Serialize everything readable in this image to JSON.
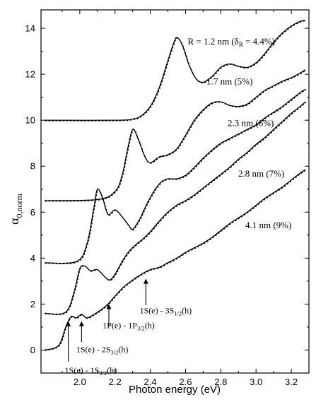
{
  "chart_data": {
    "type": "line",
    "xlabel": "Photon energy (eV)",
    "ylabel": "α",
    "ylabel_sub": "0,norm",
    "xlim": [
      1.78,
      3.3
    ],
    "ylim": [
      -1.0,
      14.8
    ],
    "xticks": [
      2.0,
      2.2,
      2.4,
      2.6,
      2.8,
      3.0,
      3.2
    ],
    "xtick_labels": [
      "2.0",
      "2.2",
      "2.4",
      "2.6",
      "2.8",
      "3.0",
      "3.2"
    ],
    "yticks": [
      0,
      2,
      4,
      6,
      8,
      10,
      12,
      14
    ],
    "ytick_labels": [
      "0",
      "2",
      "4",
      "6",
      "8",
      "10",
      "12",
      "14"
    ],
    "grid": false,
    "series": [
      {
        "label_main": "R = 1.2 nm (δ",
        "label_sub": "R",
        "label_tail": " = 4.4%)",
        "label_at": [
          2.86,
          13.3
        ],
        "x": [
          1.8,
          2.2,
          2.3,
          2.35,
          2.4,
          2.45,
          2.5,
          2.53,
          2.55,
          2.58,
          2.62,
          2.66,
          2.7,
          2.75,
          2.8,
          2.85,
          2.9,
          2.95,
          3.0,
          3.05,
          3.1,
          3.15,
          3.2,
          3.25,
          3.28
        ],
        "y": [
          10.0,
          10.0,
          10.05,
          10.2,
          10.6,
          11.4,
          12.6,
          13.3,
          13.6,
          13.3,
          12.4,
          11.8,
          11.65,
          11.9,
          12.3,
          12.45,
          12.35,
          12.3,
          12.5,
          12.9,
          13.4,
          13.8,
          14.1,
          14.3,
          14.35
        ]
      },
      {
        "label_main": "1.7 nm (5%)",
        "label_at": [
          2.85,
          11.55
        ],
        "x": [
          1.8,
          2.1,
          2.2,
          2.24,
          2.27,
          2.3,
          2.33,
          2.37,
          2.4,
          2.45,
          2.5,
          2.55,
          2.6,
          2.65,
          2.7,
          2.75,
          2.8,
          2.85,
          2.9,
          2.95,
          3.0,
          3.05,
          3.1,
          3.15,
          3.2,
          3.25,
          3.28
        ],
        "y": [
          6.5,
          6.55,
          6.9,
          7.6,
          8.7,
          9.6,
          9.2,
          8.4,
          8.15,
          8.4,
          8.5,
          8.75,
          9.35,
          10.0,
          10.45,
          10.75,
          10.8,
          10.65,
          10.6,
          10.7,
          11.0,
          11.3,
          11.5,
          11.7,
          11.85,
          12.05,
          12.2
        ]
      },
      {
        "label_main": "2.3 nm (6%)",
        "label_at": [
          2.97,
          9.75
        ],
        "x": [
          1.8,
          1.98,
          2.04,
          2.08,
          2.1,
          2.13,
          2.16,
          2.2,
          2.24,
          2.28,
          2.3,
          2.34,
          2.38,
          2.42,
          2.46,
          2.5,
          2.55,
          2.6,
          2.65,
          2.7,
          2.75,
          2.8,
          2.85,
          2.9,
          2.95,
          3.0,
          3.05,
          3.1,
          3.15,
          3.2,
          3.25,
          3.28
        ],
        "y": [
          3.8,
          3.85,
          4.6,
          6.2,
          7.0,
          6.6,
          5.9,
          6.1,
          5.8,
          5.4,
          5.25,
          5.7,
          6.35,
          6.9,
          7.3,
          7.45,
          7.45,
          7.6,
          7.95,
          8.35,
          8.7,
          9.0,
          9.2,
          9.4,
          9.6,
          9.8,
          10.1,
          10.35,
          10.6,
          10.9,
          11.2,
          11.35
        ]
      },
      {
        "label_main": "2.8 nm (7%)",
        "label_at": [
          3.03,
          7.55
        ],
        "x": [
          1.8,
          1.92,
          1.97,
          2.0,
          2.03,
          2.06,
          2.1,
          2.14,
          2.17,
          2.2,
          2.24,
          2.28,
          2.32,
          2.36,
          2.4,
          2.45,
          2.5,
          2.55,
          2.6,
          2.65,
          2.7,
          2.75,
          2.8,
          2.85,
          2.9,
          2.95,
          3.0,
          3.05,
          3.1,
          3.15,
          3.2,
          3.25,
          3.28
        ],
        "y": [
          1.6,
          1.65,
          2.6,
          3.55,
          3.65,
          3.45,
          3.5,
          3.2,
          3.05,
          3.3,
          3.85,
          4.3,
          4.6,
          4.85,
          5.15,
          5.6,
          6.0,
          6.3,
          6.5,
          6.75,
          7.05,
          7.35,
          7.65,
          7.95,
          8.3,
          8.6,
          8.95,
          9.25,
          9.6,
          9.95,
          10.3,
          10.6,
          10.8
        ]
      },
      {
        "label_main": "4.1 nm (9%)",
        "label_at": [
          3.07,
          5.3
        ],
        "x": [
          1.8,
          1.88,
          1.92,
          1.95,
          1.98,
          2.01,
          2.04,
          2.08,
          2.12,
          2.16,
          2.2,
          2.25,
          2.3,
          2.35,
          2.4,
          2.45,
          2.5,
          2.55,
          2.6,
          2.65,
          2.7,
          2.75,
          2.8,
          2.85,
          2.9,
          2.95,
          3.0,
          3.05,
          3.1,
          3.15,
          3.2,
          3.25,
          3.28
        ],
        "y": [
          0.0,
          0.2,
          1.0,
          1.45,
          1.4,
          1.55,
          1.4,
          1.55,
          1.75,
          2.0,
          2.35,
          2.75,
          3.05,
          3.3,
          3.5,
          3.6,
          3.8,
          4.0,
          4.25,
          4.45,
          4.65,
          4.9,
          5.2,
          5.5,
          5.75,
          6.0,
          6.3,
          6.6,
          6.85,
          7.1,
          7.4,
          7.7,
          7.85
        ]
      }
    ],
    "annotations": [
      {
        "main": "1S(e) - 1S",
        "sub": "3/2",
        "tail": "(h)",
        "arrow_x": 1.935,
        "arrow_top": 1.25,
        "arrow_bottom": -0.1,
        "text_at": [
          1.915,
          -1.0
        ],
        "line_to": -0.5
      },
      {
        "main": "1S(e) - 2S",
        "sub": "3/2",
        "tail": "(h)",
        "arrow_x": 2.01,
        "arrow_top": 1.25,
        "arrow_bottom": 0.65,
        "text_at": [
          1.98,
          -0.1
        ],
        "line_to": 0.35
      },
      {
        "main": "1P(e) - 1P",
        "sub": "3/2",
        "tail": "(h)",
        "arrow_x": 2.165,
        "arrow_top": 2.0,
        "arrow_bottom": 1.25,
        "text_at": [
          2.13,
          0.95
        ],
        "line_to": 1.05
      },
      {
        "main": "1S(e) - 3S",
        "sub": "1/2",
        "tail": "(h)",
        "arrow_x": 2.375,
        "arrow_top": 3.1,
        "arrow_bottom": 1.95,
        "text_at": [
          2.34,
          1.6
        ],
        "line_to": 1.95
      }
    ]
  }
}
